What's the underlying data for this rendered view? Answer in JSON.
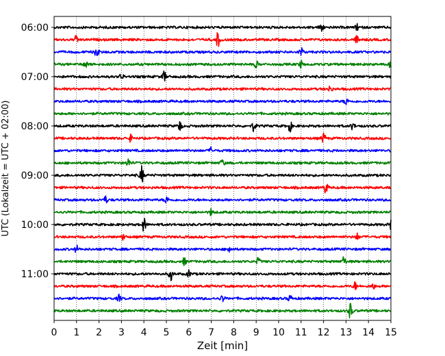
{
  "chart_data": {
    "type": "line",
    "title": "",
    "xlabel": "Zeit  [min]",
    "ylabel": "UTC (Lokalzeit = UTC + 02:00)",
    "xlim": [
      0,
      15
    ],
    "x_ticks": [
      "0",
      "1",
      "2",
      "3",
      "4",
      "5",
      "6",
      "7",
      "8",
      "9",
      "10",
      "11",
      "12",
      "13",
      "14",
      "15"
    ],
    "y_ticks": [
      "06:00",
      "07:00",
      "08:00",
      "09:00",
      "10:00",
      "11:00"
    ],
    "grid": "vertical dotted at each minute",
    "trace_interval_minutes": 15,
    "series_colors": [
      "#000000",
      "#ff0000",
      "#0000ff",
      "#008000"
    ],
    "series": [
      {
        "start": "06:00",
        "color": "#000000",
        "events": [
          {
            "t": 11.9,
            "amp": 1.6
          },
          {
            "t": 13.5,
            "amp": 0.9
          }
        ]
      },
      {
        "start": "06:15",
        "color": "#ff0000",
        "events": [
          {
            "t": 1.0,
            "amp": 1.2
          },
          {
            "t": 7.3,
            "amp": 2.2
          },
          {
            "t": 13.5,
            "amp": 1.3
          }
        ]
      },
      {
        "start": "06:30",
        "color": "#0000ff",
        "events": [
          {
            "t": 1.9,
            "amp": 1.8
          },
          {
            "t": 11.0,
            "amp": 1.4
          }
        ]
      },
      {
        "start": "06:45",
        "color": "#008000",
        "events": [
          {
            "t": 1.4,
            "amp": 1.0
          },
          {
            "t": 9.0,
            "amp": 0.9
          },
          {
            "t": 11.0,
            "amp": 1.0
          },
          {
            "t": 15.0,
            "amp": 1.2
          }
        ]
      },
      {
        "start": "07:00",
        "color": "#000000",
        "events": [
          {
            "t": 3.0,
            "amp": 0.8
          },
          {
            "t": 4.9,
            "amp": 1.5
          }
        ]
      },
      {
        "start": "07:15",
        "color": "#ff0000",
        "events": [
          {
            "t": 12.3,
            "amp": 1.0
          }
        ]
      },
      {
        "start": "07:30",
        "color": "#0000ff",
        "events": [
          {
            "t": 13.0,
            "amp": 1.0
          }
        ]
      },
      {
        "start": "07:45",
        "color": "#008000",
        "events": []
      },
      {
        "start": "08:00",
        "color": "#000000",
        "events": [
          {
            "t": 5.6,
            "amp": 1.5
          },
          {
            "t": 8.9,
            "amp": 1.5
          },
          {
            "t": 10.5,
            "amp": 1.6
          },
          {
            "t": 13.3,
            "amp": 1.0
          }
        ]
      },
      {
        "start": "08:15",
        "color": "#ff0000",
        "events": [
          {
            "t": 3.4,
            "amp": 0.9
          },
          {
            "t": 12.0,
            "amp": 1.5
          }
        ]
      },
      {
        "start": "08:30",
        "color": "#0000ff",
        "events": [
          {
            "t": 7.0,
            "amp": 0.8
          }
        ]
      },
      {
        "start": "08:45",
        "color": "#008000",
        "events": [
          {
            "t": 3.3,
            "amp": 1.3
          },
          {
            "t": 7.5,
            "amp": 1.1
          }
        ]
      },
      {
        "start": "09:00",
        "color": "#000000",
        "events": [
          {
            "t": 3.9,
            "amp": 2.6
          }
        ]
      },
      {
        "start": "09:15",
        "color": "#ff0000",
        "events": [
          {
            "t": 12.1,
            "amp": 1.7
          }
        ]
      },
      {
        "start": "09:30",
        "color": "#0000ff",
        "events": [
          {
            "t": 2.3,
            "amp": 1.0
          },
          {
            "t": 5.0,
            "amp": 1.0
          }
        ]
      },
      {
        "start": "09:45",
        "color": "#008000",
        "events": [
          {
            "t": 7.0,
            "amp": 0.9
          }
        ]
      },
      {
        "start": "10:00",
        "color": "#000000",
        "events": [
          {
            "t": 4.0,
            "amp": 2.0
          },
          {
            "t": 15.0,
            "amp": 1.4
          }
        ]
      },
      {
        "start": "10:15",
        "color": "#ff0000",
        "events": [
          {
            "t": 3.1,
            "amp": 0.9
          },
          {
            "t": 13.5,
            "amp": 0.9
          }
        ]
      },
      {
        "start": "10:30",
        "color": "#0000ff",
        "events": [
          {
            "t": 1.0,
            "amp": 1.0
          },
          {
            "t": 7.8,
            "amp": 1.0
          }
        ]
      },
      {
        "start": "10:45",
        "color": "#008000",
        "events": [
          {
            "t": 5.8,
            "amp": 1.0
          },
          {
            "t": 9.1,
            "amp": 1.1
          },
          {
            "t": 12.9,
            "amp": 1.4
          }
        ]
      },
      {
        "start": "11:00",
        "color": "#000000",
        "events": [
          {
            "t": 5.2,
            "amp": 1.8
          },
          {
            "t": 6.0,
            "amp": 0.9
          }
        ]
      },
      {
        "start": "11:15",
        "color": "#ff0000",
        "events": [
          {
            "t": 13.4,
            "amp": 1.1
          },
          {
            "t": 14.2,
            "amp": 0.9
          }
        ]
      },
      {
        "start": "11:30",
        "color": "#0000ff",
        "events": [
          {
            "t": 2.9,
            "amp": 1.0
          },
          {
            "t": 7.5,
            "amp": 1.0
          },
          {
            "t": 10.5,
            "amp": 0.9
          }
        ]
      },
      {
        "start": "11:45",
        "color": "#008000",
        "events": [
          {
            "t": 13.2,
            "amp": 2.4
          }
        ]
      }
    ]
  }
}
